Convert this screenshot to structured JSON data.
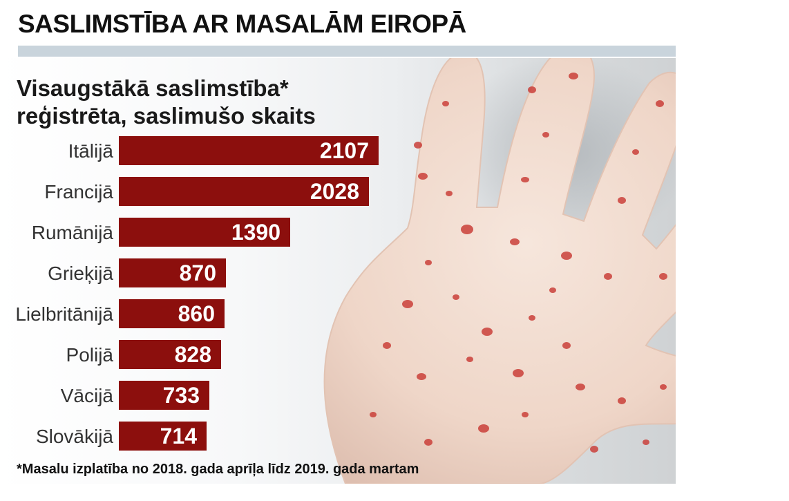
{
  "header": {
    "headline": "SASLIMSTĪBA AR MASALĀM EIROPĀ",
    "subtitle_line1": "Visaugstākā saslimstība*",
    "subtitle_line2": "reģistrēta, saslimušo skaits"
  },
  "footnote": "*Masalu izplatība no 2018. gada aprīļa līdz 2019. gada martam",
  "colors": {
    "bar": "#8c0f0d",
    "bar_label": "#ffffff",
    "category_label": "#333333",
    "head_rule": "#c9d4dc"
  },
  "photo": {
    "icon": "measles-rash-hand-photo"
  },
  "chart_data": {
    "type": "bar",
    "orientation": "horizontal",
    "categories": [
      "Itālijā",
      "Francijā",
      "Rumānijā",
      "Grieķijā",
      "Lielbritānijā",
      "Polijā",
      "Vācijā",
      "Slovākijā"
    ],
    "values": [
      2107,
      2028,
      1390,
      870,
      860,
      828,
      733,
      714
    ],
    "title": "Visaugstākā saslimstība* reģistrēta, saslimušo skaits",
    "xlabel": "",
    "ylabel": "",
    "xlim": [
      0,
      2107
    ],
    "grid": false,
    "legend": "none",
    "data_labels": "inside-end"
  }
}
